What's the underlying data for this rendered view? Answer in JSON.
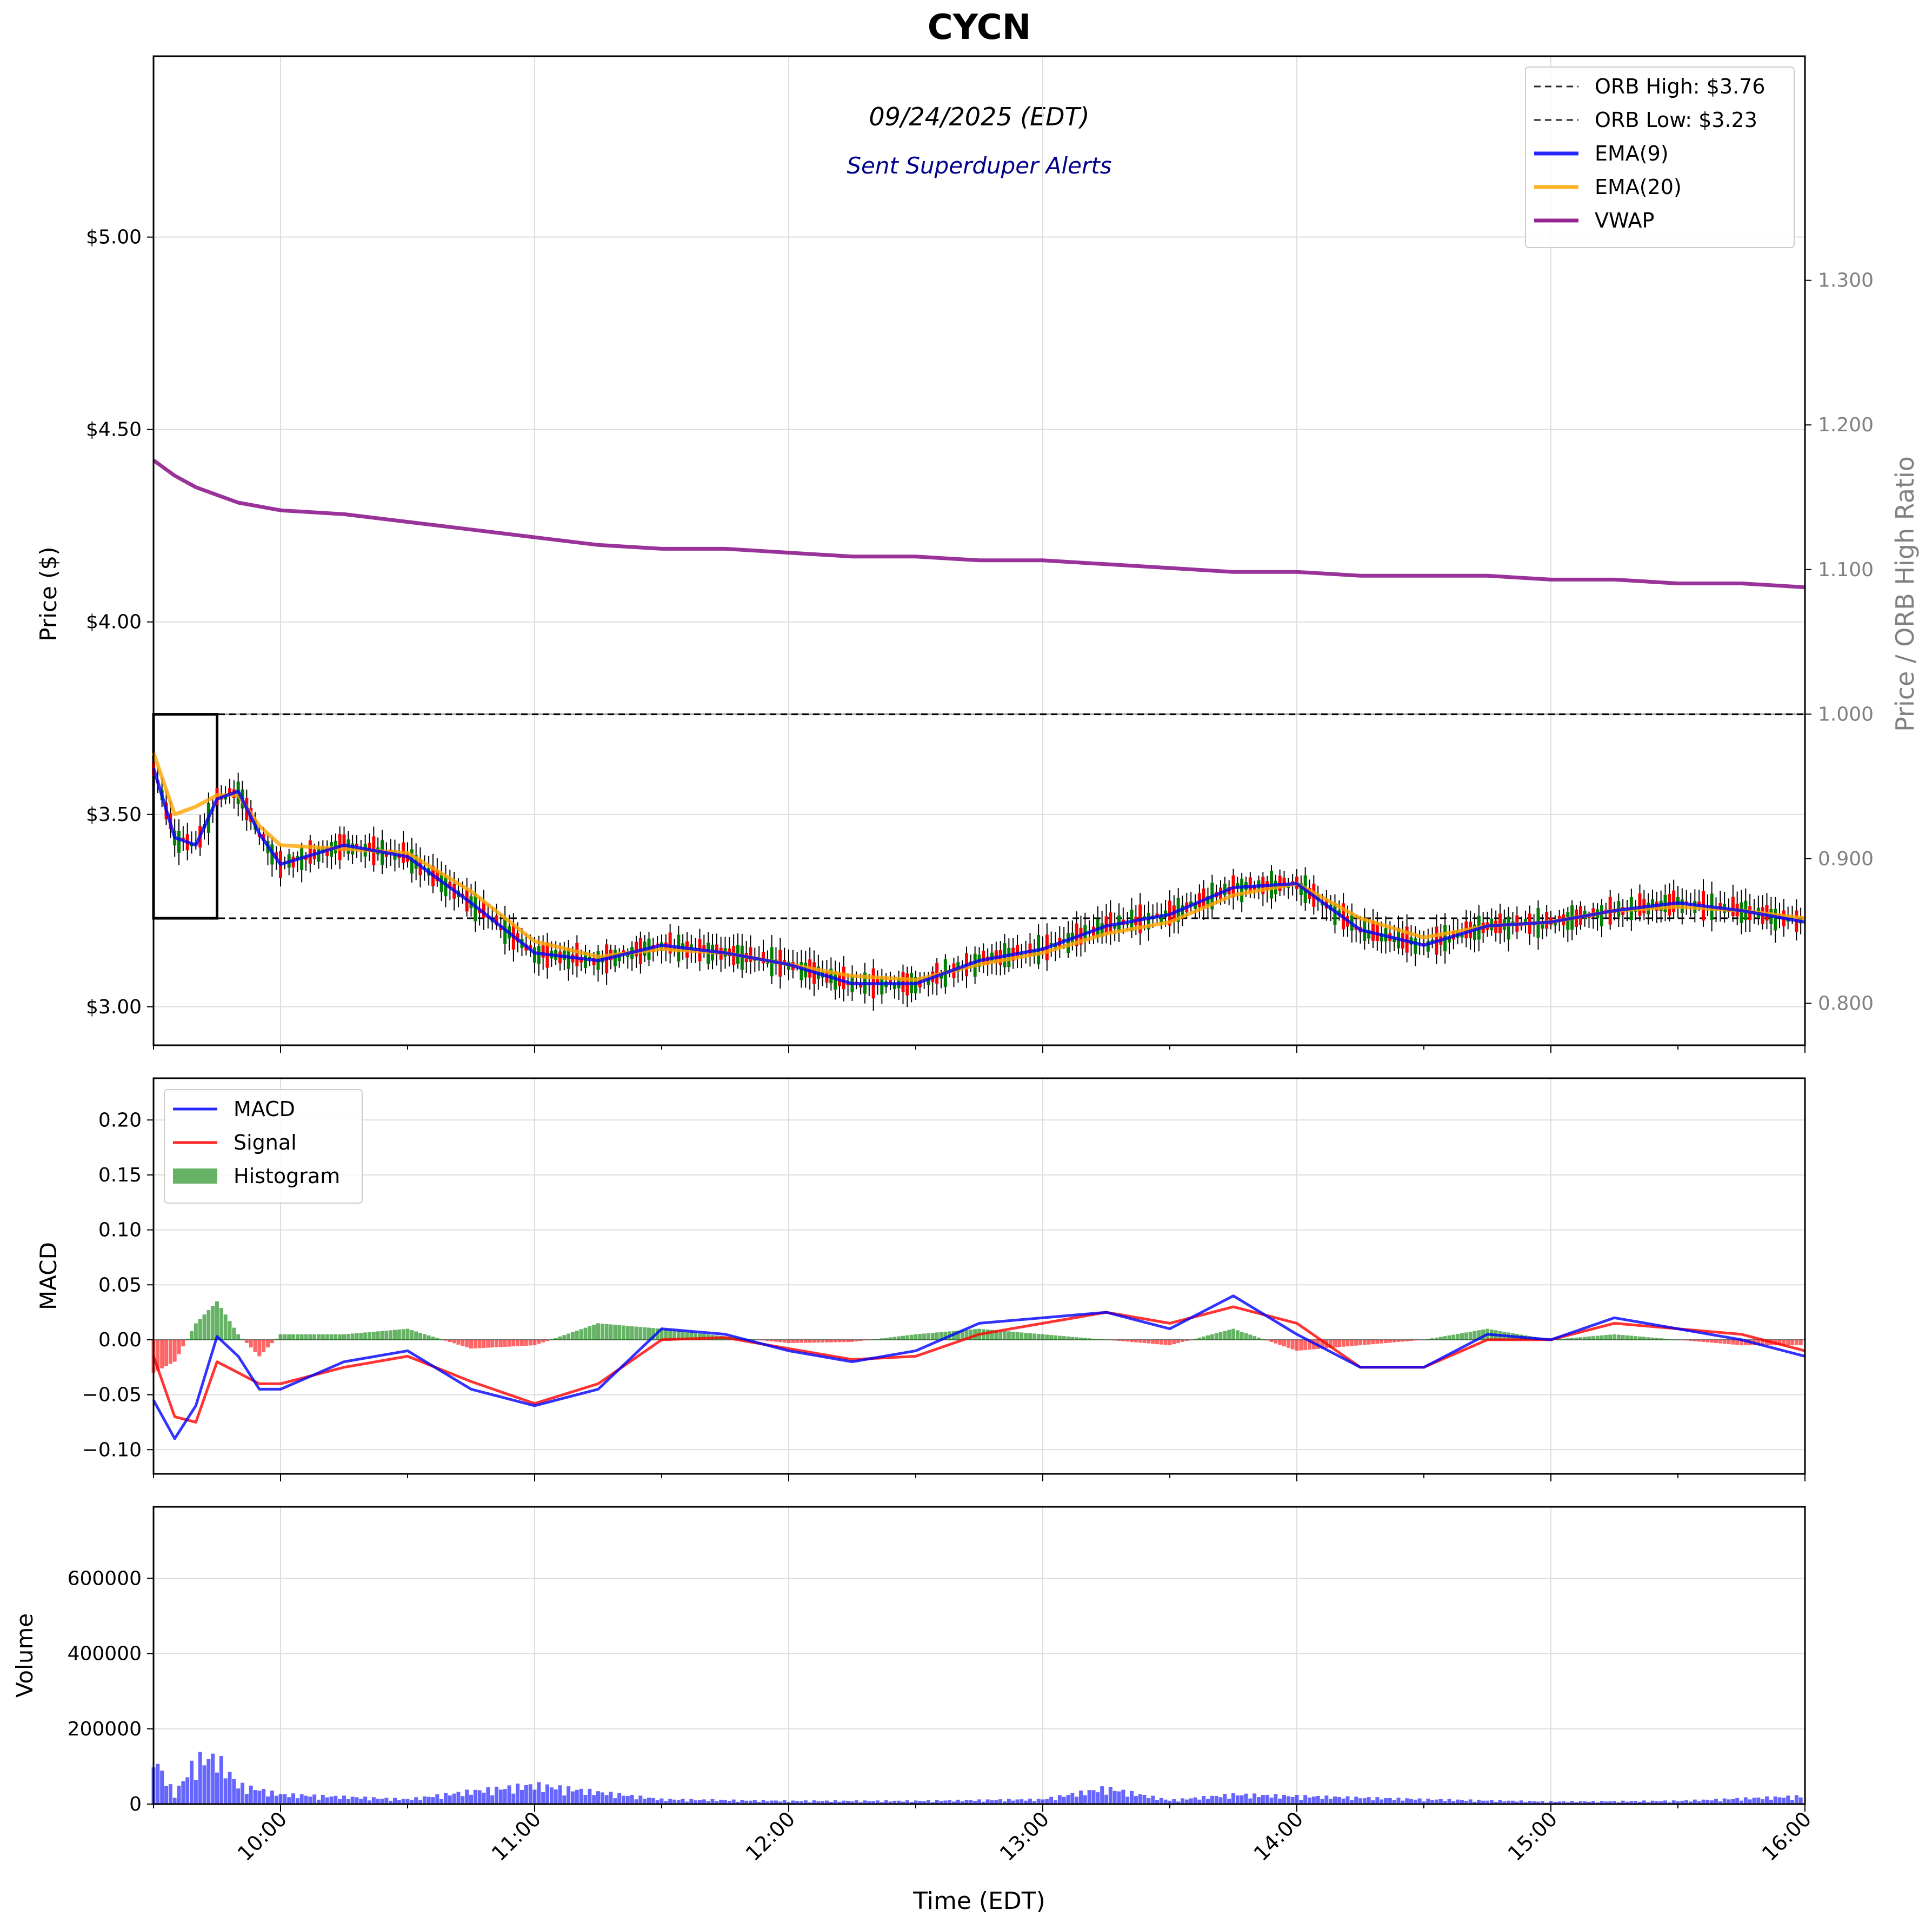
{
  "figure": {
    "title": "CYCN",
    "date_label": "09/24/2025 (EDT)",
    "alert_label": "Sent Superduper Alerts",
    "xlabel": "Time (EDT)",
    "x_tick_labels": [
      "10:00",
      "11:00",
      "12:00",
      "13:00",
      "14:00",
      "15:00",
      "16:00"
    ]
  },
  "colors": {
    "ema9": "#0000ff",
    "ema20": "#ffa500",
    "vwap": "#800080",
    "macd": "#0000ff",
    "signal": "#ff0000",
    "hist_pos": "#008000",
    "hist_neg": "#ff0000",
    "volume": "#0000ff",
    "candle_up": "#008000",
    "candle_down": "#ff0000",
    "grid": "#dddddd",
    "ratio_axis": "#808080"
  },
  "chart_data": [
    {
      "type": "line",
      "panel": "price",
      "ylabel": "Price ($)",
      "y2label": "Price / ORB High Ratio",
      "y_tick_labels": [
        "$3.00",
        "$3.50",
        "$4.00",
        "$4.50",
        "$5.00"
      ],
      "y2_tick_labels": [
        "0.800",
        "0.900",
        "1.000",
        "1.100",
        "1.200",
        "1.300"
      ],
      "xlim": [
        "09:30",
        "16:00"
      ],
      "ylim": [
        2.9,
        5.47
      ],
      "y2lim": [
        0.771,
        1.455
      ],
      "grid": true,
      "legend_position": "top-right",
      "legend": [
        "ORB High: $3.76",
        "ORB Low: $3.23",
        "EMA(9)",
        "EMA(20)",
        "VWAP"
      ],
      "orb": {
        "high": 3.76,
        "low": 3.23,
        "window": [
          "09:30",
          "09:45"
        ]
      },
      "x": [
        "09:30",
        "09:35",
        "09:40",
        "09:45",
        "09:50",
        "09:55",
        "10:00",
        "10:15",
        "10:30",
        "10:45",
        "11:00",
        "11:15",
        "11:30",
        "11:45",
        "12:00",
        "12:15",
        "12:30",
        "12:45",
        "13:00",
        "13:15",
        "13:30",
        "13:45",
        "14:00",
        "14:15",
        "14:30",
        "14:45",
        "15:00",
        "15:15",
        "15:30",
        "15:45",
        "16:00"
      ],
      "series": [
        {
          "name": "EMA(9)",
          "values": [
            3.62,
            3.44,
            3.42,
            3.54,
            3.56,
            3.45,
            3.37,
            3.42,
            3.39,
            3.27,
            3.14,
            3.12,
            3.16,
            3.14,
            3.11,
            3.06,
            3.06,
            3.12,
            3.15,
            3.21,
            3.24,
            3.31,
            3.32,
            3.2,
            3.16,
            3.21,
            3.22,
            3.25,
            3.27,
            3.25,
            3.22
          ]
        },
        {
          "name": "EMA(20)",
          "values": [
            3.66,
            3.5,
            3.52,
            3.55,
            3.55,
            3.47,
            3.42,
            3.41,
            3.4,
            3.3,
            3.17,
            3.13,
            3.15,
            3.14,
            3.11,
            3.08,
            3.07,
            3.11,
            3.14,
            3.19,
            3.22,
            3.29,
            3.32,
            3.23,
            3.18,
            3.21,
            3.22,
            3.25,
            3.26,
            3.25,
            3.23
          ]
        },
        {
          "name": "VWAP",
          "values": [
            4.42,
            4.38,
            4.35,
            4.33,
            4.31,
            4.3,
            4.29,
            4.28,
            4.26,
            4.24,
            4.22,
            4.2,
            4.19,
            4.19,
            4.18,
            4.17,
            4.17,
            4.16,
            4.16,
            4.15,
            4.14,
            4.13,
            4.13,
            4.12,
            4.12,
            4.12,
            4.11,
            4.11,
            4.1,
            4.1,
            4.09
          ]
        }
      ]
    },
    {
      "type": "line",
      "panel": "macd",
      "ylabel": "MACD",
      "y_tick_labels": [
        "−0.10",
        "−0.05",
        "0.00",
        "0.05",
        "0.10",
        "0.15",
        "0.20"
      ],
      "xlim": [
        "09:30",
        "16:00"
      ],
      "ylim": [
        -0.122,
        0.238
      ],
      "grid": true,
      "legend_position": "top-left",
      "legend": [
        "MACD",
        "Signal",
        "Histogram"
      ],
      "x": [
        "09:30",
        "09:35",
        "09:40",
        "09:45",
        "09:50",
        "09:55",
        "10:00",
        "10:15",
        "10:30",
        "10:45",
        "11:00",
        "11:15",
        "11:30",
        "11:45",
        "12:00",
        "12:15",
        "12:30",
        "12:45",
        "13:00",
        "13:15",
        "13:30",
        "13:45",
        "14:00",
        "14:15",
        "14:30",
        "14:45",
        "15:00",
        "15:15",
        "15:30",
        "15:45",
        "16:00"
      ],
      "series": [
        {
          "name": "MACD",
          "values": [
            -0.055,
            -0.09,
            -0.06,
            0.003,
            -0.015,
            -0.045,
            -0.045,
            -0.02,
            -0.01,
            -0.045,
            -0.06,
            -0.045,
            0.01,
            0.005,
            -0.01,
            -0.02,
            -0.01,
            0.015,
            0.02,
            0.025,
            0.01,
            0.04,
            0.005,
            -0.025,
            -0.025,
            0.005,
            0.0,
            0.02,
            0.01,
            0.0,
            -0.015
          ]
        },
        {
          "name": "Signal",
          "values": [
            -0.015,
            -0.07,
            -0.075,
            -0.02,
            -0.03,
            -0.04,
            -0.04,
            -0.025,
            -0.015,
            -0.038,
            -0.058,
            -0.04,
            0.0,
            0.002,
            -0.008,
            -0.018,
            -0.015,
            0.005,
            0.015,
            0.025,
            0.015,
            0.03,
            0.015,
            -0.025,
            -0.025,
            0.0,
            0.0,
            0.015,
            0.01,
            0.005,
            -0.01
          ]
        },
        {
          "name": "Histogram",
          "values": [
            -0.03,
            -0.02,
            0.015,
            0.035,
            0.005,
            -0.015,
            0.005,
            0.005,
            0.01,
            -0.008,
            -0.005,
            0.015,
            0.01,
            0.003,
            -0.003,
            -0.002,
            0.005,
            0.01,
            0.005,
            0.0,
            -0.005,
            0.01,
            -0.01,
            -0.005,
            0.0,
            0.01,
            0.0,
            0.005,
            0.0,
            -0.005,
            -0.005
          ]
        }
      ]
    },
    {
      "type": "bar",
      "panel": "volume",
      "ylabel": "Volume",
      "y_tick_labels": [
        "0",
        "200000",
        "400000",
        "600000"
      ],
      "xlim": [
        "09:30",
        "16:00"
      ],
      "ylim": [
        0,
        790000
      ],
      "grid": true,
      "x": [
        "09:30",
        "09:35",
        "09:40",
        "09:45",
        "09:50",
        "10:00",
        "10:30",
        "10:45",
        "11:00",
        "11:30",
        "12:00",
        "12:30",
        "13:00",
        "13:15",
        "13:30",
        "13:45",
        "14:00",
        "14:30",
        "15:00",
        "15:30",
        "16:00"
      ],
      "values": [
        145000,
        30000,
        140000,
        145000,
        60000,
        30000,
        15000,
        40000,
        60000,
        15000,
        10000,
        10000,
        15000,
        50000,
        12000,
        30000,
        25000,
        15000,
        8000,
        10000,
        25000
      ]
    }
  ]
}
